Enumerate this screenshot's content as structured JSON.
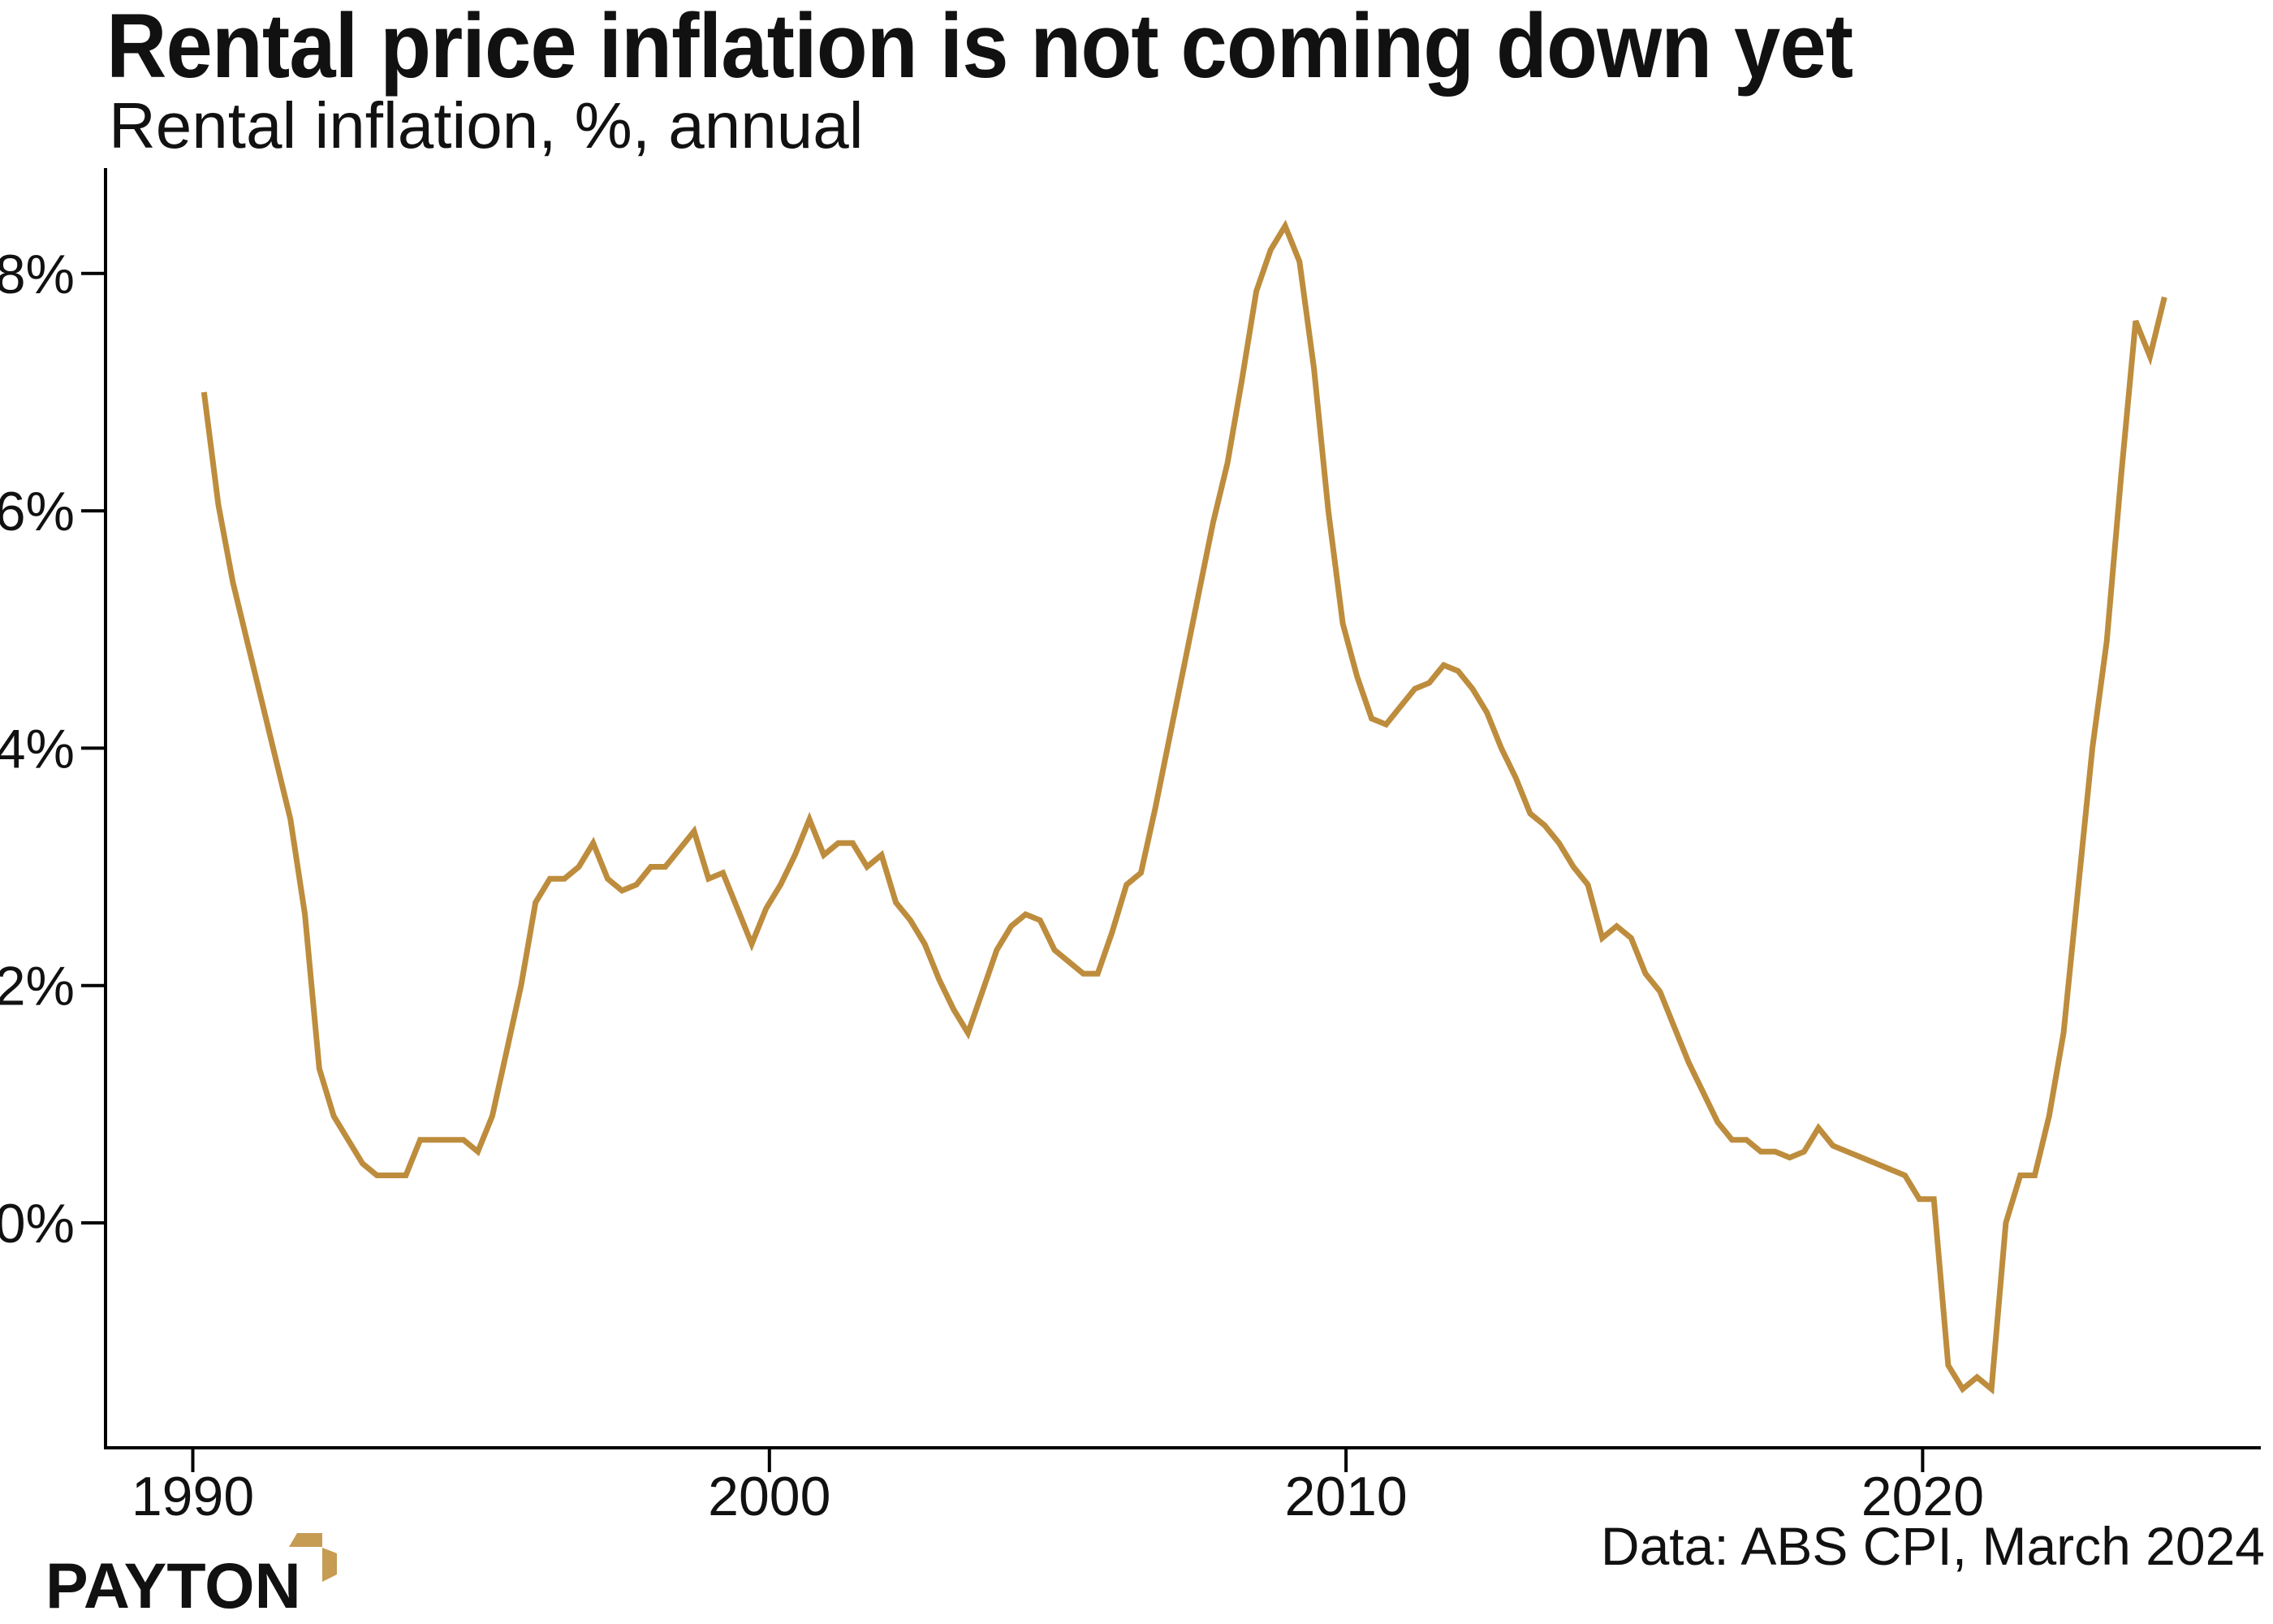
{
  "title": "Rental price inflation is not coming down yet",
  "subtitle": "Rental inflation, %, annual",
  "source_note": "Data: ABS CPI, March 2024",
  "brand": {
    "name": "PAYTON",
    "arrow_color": "#C69B52"
  },
  "chart_data": {
    "type": "line",
    "title": "Rental price inflation is not coming down yet",
    "subtitle": "Rental inflation, %, annual",
    "series_name": "Rental inflation, % annual",
    "period_start": "1990 Q1",
    "period_end": "2024 Q1",
    "x_start": 1990.25,
    "x_step": 0.25,
    "values": [
      7.0,
      6.05,
      5.4,
      4.9,
      4.4,
      3.9,
      3.4,
      2.6,
      1.3,
      0.9,
      0.7,
      0.5,
      0.4,
      0.4,
      0.4,
      0.7,
      0.7,
      0.7,
      0.7,
      0.6,
      0.9,
      1.45,
      2.0,
      2.7,
      2.9,
      2.9,
      3.0,
      3.2,
      2.9,
      2.8,
      2.85,
      3.0,
      3.0,
      3.15,
      3.3,
      2.9,
      2.95,
      2.65,
      2.35,
      2.65,
      2.85,
      3.1,
      3.4,
      3.1,
      3.2,
      3.2,
      3.0,
      3.1,
      2.7,
      2.55,
      2.35,
      2.05,
      1.8,
      1.6,
      1.95,
      2.3,
      2.5,
      2.6,
      2.55,
      2.3,
      2.2,
      2.1,
      2.1,
      2.45,
      2.85,
      2.95,
      3.5,
      4.1,
      4.7,
      5.3,
      5.9,
      6.4,
      7.1,
      7.85,
      8.2,
      8.4,
      8.1,
      7.2,
      6.0,
      5.05,
      4.6,
      4.25,
      4.2,
      4.35,
      4.5,
      4.55,
      4.7,
      4.65,
      4.5,
      4.3,
      4.0,
      3.75,
      3.45,
      3.35,
      3.2,
      3.0,
      2.85,
      2.4,
      2.5,
      2.4,
      2.1,
      1.95,
      1.65,
      1.35,
      1.1,
      0.85,
      0.7,
      0.7,
      0.6,
      0.6,
      0.55,
      0.6,
      0.8,
      0.65,
      0.6,
      0.55,
      0.5,
      0.45,
      0.4,
      0.2,
      0.2,
      -1.2,
      -1.4,
      -1.3,
      -1.4,
      0.0,
      0.4,
      0.4,
      0.9,
      1.6,
      2.8,
      4.0,
      4.9,
      6.3,
      7.6,
      7.3,
      7.8
    ],
    "y_ticks": [
      "0%",
      "2%",
      "4%",
      "6%",
      "8%"
    ],
    "x_ticks": [
      "1990",
      "2000",
      "2010",
      "2020"
    ],
    "ylim": [
      -1.9,
      8.8
    ],
    "line_color": "#BD8D3D",
    "axis_color": "#000000",
    "grid": false,
    "legend": false
  }
}
